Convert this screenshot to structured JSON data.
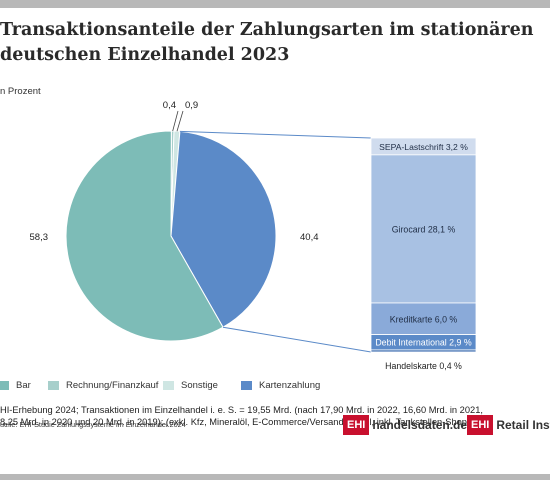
{
  "title": "Transaktionsanteile der Zahlungsarten im stationären deutschen Einzelhandel 2023",
  "unit_label": "n Prozent",
  "chart_data": [
    {
      "type": "pie",
      "categories": [
        "Bar",
        "Rechnung/Finanzkauf",
        "Sonstige",
        "Kartenzahlung"
      ],
      "values": [
        58.3,
        0.4,
        0.9,
        40.4
      ],
      "value_labels": [
        "58,3",
        "0,4",
        "0,9",
        "40,4"
      ],
      "colors": [
        "#7dbcb7",
        "#a7cfcb",
        "#cfe6e3",
        "#5b8ac8"
      ],
      "legend_position": "bottom"
    },
    {
      "type": "bar",
      "stacked": true,
      "title": "",
      "categories": [
        "SEPA-Lastschrift",
        "Girocard",
        "Kreditkarte",
        "Debit International",
        "Handelskarte"
      ],
      "values": [
        3.2,
        28.1,
        6.0,
        2.9,
        0.4
      ],
      "labels": [
        "SEPA-Lastschrift 3,2 %",
        "Girocard 28,1 %",
        "Kreditkarte 6,0 %",
        "Debit International 2,9 %",
        "Handelskarte 0,4 %"
      ],
      "colors": [
        "#d0dcee",
        "#a8c1e3",
        "#8aaad9",
        "#5b8ac8",
        "#4573b3"
      ]
    }
  ],
  "legend": [
    {
      "label": "Bar",
      "color": "#7dbcb7"
    },
    {
      "label": "Rechnung/Finanzkauf",
      "color": "#a7cfcb"
    },
    {
      "label": "Sonstige",
      "color": "#cfe6e3"
    },
    {
      "label": "Kartenzahlung",
      "color": "#5b8ac8"
    }
  ],
  "footnote": "HI-Erhebung 2024; Transaktionen im Einzelhandel i. e. S. = 19,55 Mrd. (nach 17,90 Mrd. in 2022, 16,60 Mrd. in 2021,\n8,25 Mrd. in 2020 und 20 Mrd. in 2019); (exkl. Kfz, Mineralöl, E-Commerce/Versandhandel, inkl. Tankstellen-Shops)",
  "source": "uelle: EHI-Studie Zahlungssysteme im Einzelhandel 2024",
  "logos": [
    {
      "mark": "EHI",
      "text": "handelsdaten.de"
    },
    {
      "mark": "EHI",
      "text": "Retail Institut"
    }
  ]
}
